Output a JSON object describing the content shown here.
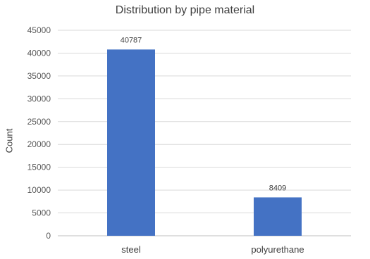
{
  "chart_data": {
    "type": "bar",
    "title": "Distribution by pipe material",
    "xlabel": "",
    "ylabel": "Count",
    "categories": [
      "steel",
      "polyurethane"
    ],
    "values": [
      40787,
      8409
    ],
    "data_labels": [
      "40787",
      "8409"
    ],
    "ylim": [
      0,
      45000
    ],
    "yticks": [
      0,
      5000,
      10000,
      15000,
      20000,
      25000,
      30000,
      35000,
      40000,
      45000
    ],
    "grid": true,
    "legend": "none",
    "bar_color": "#4472c4"
  }
}
